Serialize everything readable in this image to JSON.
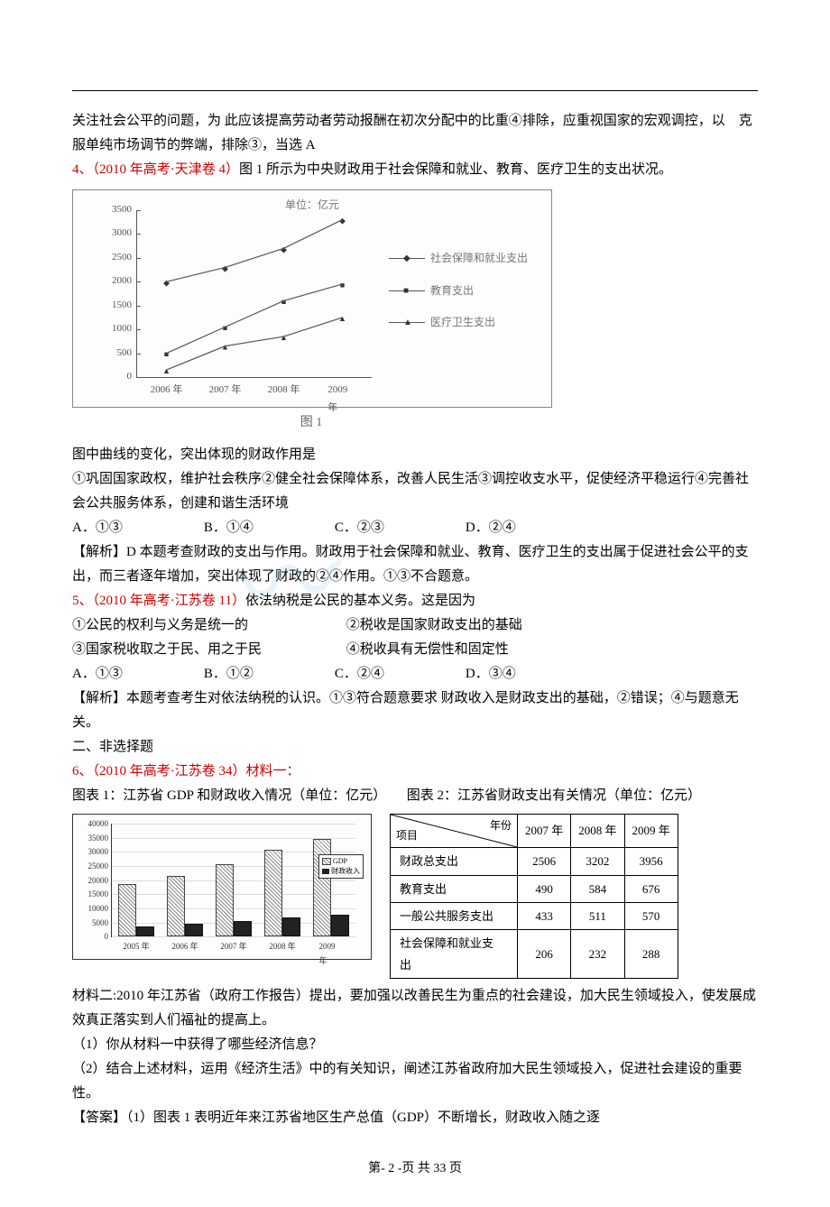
{
  "intro": "关注社会公平的问题，为 此应该提高劳动者劳动报酬在初次分配中的比重④排除，应重视国家的宏观调控，以　克服单纯市场调节的弊端，排除③，当选 A",
  "q4": {
    "num": "4、",
    "cite": "（2010 年高考·天津卷 4）",
    "text": "图 1 所示为中央财政用于社会保障和就业、教育、医疗卫生的支出状况。",
    "chart": {
      "unit": "单位：亿元",
      "y_ticks": [
        "0",
        "500",
        "1000",
        "1500",
        "2000",
        "2500",
        "3000",
        "3500"
      ],
      "x_ticks": [
        "2006 年",
        "2007 年",
        "2008 年",
        "2009 年"
      ],
      "legend": [
        "社会保障和就业支出",
        "教育支出",
        "医疗卫生支出"
      ],
      "series": {
        "sb": [
          2000,
          2300,
          2700,
          3300
        ],
        "edu": [
          500,
          1050,
          1600,
          1950
        ],
        "med": [
          150,
          650,
          850,
          1250
        ]
      },
      "ymax": 3500,
      "caption": "图 1"
    },
    "stem": "图中曲线的变化，突出体现的财政作用是",
    "opts_line": "①巩固国家政权，维护社会秩序②健全社会保障体系，改善人民生活③调控收支水平，促使经济平稳运行④完善社会公共服务体系，创建和谐生活环境",
    "choices": {
      "A": "A．①③",
      "B": "B．①④",
      "C": "C．②③",
      "D": "D．②④"
    },
    "analysis": "【解析】D 本题考查财政的支出与作用。财政用于社会保障和就业、教育、医疗卫生的支出属于促进社会公平的支出，而三者逐年增加，突出体现了财政的②④作用。①③不合题意。"
  },
  "q5": {
    "num": "5、",
    "cite": "（2010 年高考·江苏卷 11）",
    "text": "依法纳税是公民的基本义务。这是因为",
    "row1a": "①公民的权利与义务是统一的",
    "row1b": "②税收是国家财政支出的基础",
    "row2a": "③国家税收取之于民、用之于民",
    "row2b": "④税收具有无偿性和固定性",
    "choices": {
      "A": "A．①③",
      "B": "B．①②",
      "C": "C．②④",
      "D": "D．③④"
    },
    "analysis": "【解析】本题考查考生对依法纳税的认识。①③符合题意要求 财政收入是财政支出的基础，②错误；④与题意无关。"
  },
  "sec2": "二、非选择题",
  "q6": {
    "num": "6、",
    "cite": "（2010 年高考·江苏卷 34）",
    "mat1": "材料一：",
    "cap1": "图表 1：江苏省 GDP 和财政收入情况（单位：亿元）",
    "cap2": "图表 2：江苏省财政支出有关情况（单位：亿元）",
    "bar": {
      "y_ticks": [
        "0",
        "5000",
        "10000",
        "15000",
        "20000",
        "25000",
        "30000",
        "35000",
        "40000"
      ],
      "ymax": 40000,
      "years": [
        "2005 年",
        "2006 年",
        "2007 年",
        "2008 年",
        "2009 年"
      ],
      "gdp": [
        18000,
        21000,
        25000,
        30000,
        34000
      ],
      "fin": [
        3000,
        4000,
        5000,
        6000,
        7000
      ],
      "legend": [
        "GDP",
        "财政收入"
      ]
    },
    "table": {
      "head_top": "年份",
      "head_left": "项目",
      "cols": [
        "2007 年",
        "2008 年",
        "2009 年"
      ],
      "rows": [
        {
          "label": "财政总支出",
          "vals": [
            "2506",
            "3202",
            "3956"
          ]
        },
        {
          "label": "教育支出",
          "vals": [
            "490",
            "584",
            "676"
          ]
        },
        {
          "label": "一般公共服务支出",
          "vals": [
            "433",
            "511",
            "570"
          ]
        },
        {
          "label": "社会保障和就业支出",
          "vals": [
            "206",
            "232",
            "288"
          ]
        }
      ]
    },
    "mat2": "材料二:2010 年江苏省（政府工作报告）提出，要加强以改善民生为重点的社会建设，加大民生领域投入，使发展成效真正落实到人们福祉的提高上。",
    "sub1": "（1）你从材料一中获得了哪些经济信息？",
    "sub2": "（2）结合上述材料，运用《经济生活》中的有关知识，阐述江苏省政府加大民生领域投入，促进社会建设的重要性。",
    "ans": "【答案】（1）图表 1 表明近年来江苏省地区生产总值（GDP）不断增长，财政收入随之逐"
  },
  "footer": {
    "a": "第- ",
    "b": "2",
    "c": " -页  共 ",
    "d": "33",
    "e": " 页"
  }
}
